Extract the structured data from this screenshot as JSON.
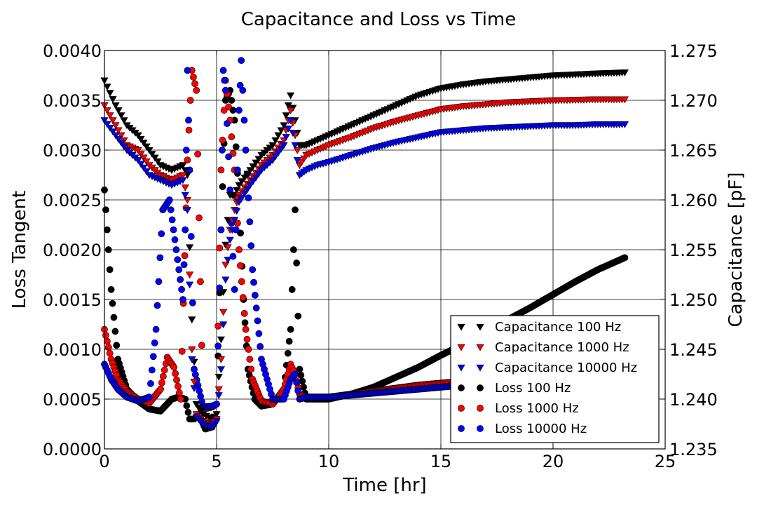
{
  "chart_data": {
    "type": "scatter",
    "title": "Capacitance and Loss vs Time",
    "xlabel": "Time [hr]",
    "ylabel_left": "Loss Tangent",
    "ylabel_right": "Capacitance [pF]",
    "xlim": [
      0,
      25
    ],
    "ylim_left": [
      0,
      0.004
    ],
    "ylim_right": [
      1.235,
      1.275
    ],
    "x_ticks": [
      "0",
      "5",
      "10",
      "15",
      "20",
      "25"
    ],
    "y_ticks_left": [
      "0.0000",
      "0.0005",
      "0.0010",
      "0.0015",
      "0.0020",
      "0.0025",
      "0.0030",
      "0.0035",
      "0.0040"
    ],
    "y_ticks_right": [
      "1.235",
      "1.240",
      "1.245",
      "1.250",
      "1.255",
      "1.260",
      "1.265",
      "1.270",
      "1.275"
    ],
    "grid": true,
    "legend_position": "lower-right",
    "series": [
      {
        "name": "Capacitance 100 Hz",
        "marker": "triangle-down",
        "color": "#000000",
        "axis": "right",
        "x": [
          0,
          0.5,
          1,
          1.5,
          2,
          2.5,
          3,
          3.5,
          3.7,
          3.9,
          4.1,
          4.4,
          4.8,
          5.0,
          5.2,
          5.4,
          5.6,
          5.8,
          6.0,
          6.5,
          7,
          7.5,
          8,
          8.3,
          8.5,
          8.7,
          9,
          9.5,
          10,
          11,
          12,
          13,
          14,
          15,
          16,
          17,
          18,
          19,
          20,
          21,
          22,
          23.2
        ],
        "y": [
          1.272,
          1.2695,
          1.2675,
          1.2665,
          1.265,
          1.2635,
          1.263,
          1.2635,
          1.2625,
          1.248,
          1.2395,
          1.2385,
          1.238,
          1.2385,
          1.246,
          1.2555,
          1.2605,
          1.2605,
          1.2615,
          1.263,
          1.2645,
          1.2655,
          1.2675,
          1.2705,
          1.268,
          1.2655,
          1.2655,
          1.266,
          1.2665,
          1.2675,
          1.2685,
          1.2695,
          1.2705,
          1.2712,
          1.2716,
          1.2719,
          1.2721,
          1.2723,
          1.2725,
          1.2726,
          1.2727,
          1.2728
        ]
      },
      {
        "name": "Capacitance 1000 Hz",
        "marker": "triangle-down",
        "color": "#ff0000",
        "axis": "right",
        "x": [
          0,
          0.5,
          1,
          1.5,
          2,
          2.5,
          3,
          3.5,
          3.7,
          3.9,
          4.1,
          4.4,
          4.8,
          5.0,
          5.2,
          5.4,
          5.6,
          5.8,
          6.0,
          6.5,
          7,
          7.5,
          8,
          8.3,
          8.5,
          8.7,
          9,
          9.5,
          10,
          11,
          12,
          13,
          14,
          15,
          16,
          17,
          18,
          19,
          20,
          21,
          22,
          23.2
        ],
        "y": [
          1.2695,
          1.2675,
          1.2655,
          1.265,
          1.2635,
          1.2625,
          1.262,
          1.2625,
          1.26,
          1.245,
          1.2385,
          1.2378,
          1.2375,
          1.238,
          1.244,
          1.2535,
          1.257,
          1.259,
          1.2605,
          1.262,
          1.2635,
          1.2645,
          1.266,
          1.269,
          1.2665,
          1.2635,
          1.2645,
          1.265,
          1.2655,
          1.2663,
          1.2672,
          1.2679,
          1.2685,
          1.2691,
          1.2694,
          1.2696,
          1.2698,
          1.2699,
          1.27,
          1.27005,
          1.2701,
          1.2701
        ]
      },
      {
        "name": "Capacitance 10000 Hz",
        "marker": "triangle-down",
        "color": "#0000ff",
        "axis": "right",
        "x": [
          0,
          0.5,
          1,
          1.5,
          2,
          2.5,
          3,
          3.5,
          3.7,
          3.9,
          4.1,
          4.4,
          4.8,
          5.0,
          5.2,
          5.4,
          5.6,
          5.8,
          6.0,
          6.5,
          7,
          7.5,
          8,
          8.3,
          8.5,
          8.7,
          9,
          9.5,
          10,
          11,
          12,
          13,
          14,
          15,
          16,
          17,
          18,
          19,
          20,
          21,
          22,
          23.2
        ],
        "y": [
          1.268,
          1.2665,
          1.265,
          1.264,
          1.2625,
          1.262,
          1.2615,
          1.262,
          1.259,
          1.244,
          1.2382,
          1.2375,
          1.2372,
          1.2378,
          1.243,
          1.252,
          1.256,
          1.258,
          1.2598,
          1.2615,
          1.263,
          1.264,
          1.2655,
          1.268,
          1.2655,
          1.2625,
          1.263,
          1.2635,
          1.2638,
          1.2645,
          1.2652,
          1.2658,
          1.2663,
          1.2668,
          1.267,
          1.2672,
          1.2673,
          1.2674,
          1.2675,
          1.2675,
          1.2676,
          1.2676
        ]
      },
      {
        "name": "Loss 100 Hz",
        "marker": "circle",
        "color": "#000000",
        "axis": "left",
        "x": [
          0,
          0.3,
          0.6,
          1,
          1.5,
          2,
          2.5,
          3,
          3.3,
          3.6,
          3.8,
          4.0,
          4.2,
          4.5,
          4.8,
          5.0,
          5.2,
          5.4,
          5.6,
          5.8,
          6.0,
          6.2,
          6.4,
          6.7,
          7,
          7.5,
          8,
          8.3,
          8.5,
          8.7,
          9,
          10,
          11,
          12,
          13,
          14,
          15,
          16,
          17,
          18,
          19,
          20,
          21,
          22,
          23.2
        ],
        "y": [
          0.0026,
          0.0016,
          0.0009,
          0.0006,
          0.00048,
          0.0004,
          0.00038,
          0.0005,
          0.00052,
          0.0005,
          0.0003,
          0.0003,
          0.00035,
          0.0002,
          0.00022,
          0.0003,
          0.0022,
          0.0035,
          0.0036,
          0.0033,
          0.0025,
          0.0015,
          0.0008,
          0.0005,
          0.00043,
          0.00045,
          0.0006,
          0.0012,
          0.0024,
          0.0008,
          0.0005,
          0.0005,
          0.00055,
          0.00062,
          0.00072,
          0.00082,
          0.00094,
          0.00105,
          0.00118,
          0.0013,
          0.00142,
          0.00155,
          0.00168,
          0.0018,
          0.00192
        ]
      },
      {
        "name": "Loss 1000 Hz",
        "marker": "circle",
        "color": "#ff0000",
        "axis": "left",
        "x": [
          0,
          0.3,
          0.6,
          1,
          1.5,
          2,
          2.5,
          2.8,
          3.1,
          3.4,
          3.7,
          3.9,
          4.1,
          4.4,
          4.8,
          5.0,
          5.2,
          5.4,
          5.6,
          5.8,
          6.0,
          6.3,
          6.6,
          7,
          7.5,
          8,
          8.3,
          8.5,
          8.7,
          9,
          10,
          11,
          12,
          13,
          14,
          15,
          16,
          17,
          18,
          19,
          20,
          21,
          22,
          23.2
        ],
        "y": [
          0.0012,
          0.0009,
          0.0007,
          0.00058,
          0.0005,
          0.00046,
          0.0006,
          0.00092,
          0.00082,
          0.0005,
          0.0029,
          0.0038,
          0.0036,
          0.0004,
          0.00042,
          0.00045,
          0.0028,
          0.0037,
          0.0033,
          0.0028,
          0.002,
          0.0012,
          0.0007,
          0.00048,
          0.00045,
          0.0006,
          0.00085,
          0.00075,
          0.00055,
          0.00052,
          0.00052,
          0.00055,
          0.00058,
          0.00061,
          0.00064,
          0.00066,
          0.00068,
          0.0007,
          0.00072,
          0.00074,
          0.00076,
          0.00078,
          0.0008,
          0.00082
        ]
      },
      {
        "name": "Loss 10000 Hz",
        "marker": "circle",
        "color": "#0000ff",
        "axis": "left",
        "x": [
          0,
          0.3,
          0.6,
          1,
          1.5,
          2,
          2.3,
          2.6,
          2.9,
          3.2,
          3.5,
          3.6,
          3.7,
          3.8,
          4.0,
          4.4,
          4.8,
          5.0,
          5.2,
          5.3,
          5.4,
          5.6,
          5.8,
          6.0,
          6.1,
          6.3,
          6.6,
          7,
          7.5,
          8,
          8.3,
          8.5,
          8.7,
          9,
          10,
          11,
          12,
          13,
          14,
          15,
          16,
          17,
          18,
          19,
          20,
          21,
          22,
          23.2
        ],
        "y": [
          0.00085,
          0.0007,
          0.0006,
          0.00052,
          0.00048,
          0.00052,
          0.0012,
          0.0024,
          0.0025,
          0.002,
          0.0015,
          0.0022,
          0.0038,
          0.0028,
          0.0008,
          0.00042,
          0.00043,
          0.00045,
          0.0022,
          0.0038,
          0.0036,
          0.0026,
          0.0016,
          0.0034,
          0.0039,
          0.003,
          0.0018,
          0.0009,
          0.0005,
          0.0005,
          0.0007,
          0.00075,
          0.0005,
          0.00052,
          0.00052,
          0.00054,
          0.00056,
          0.00058,
          0.0006,
          0.00062,
          0.00064,
          0.00066,
          0.00068,
          0.0007,
          0.00072,
          0.00074,
          0.00076,
          0.00078
        ]
      }
    ]
  }
}
